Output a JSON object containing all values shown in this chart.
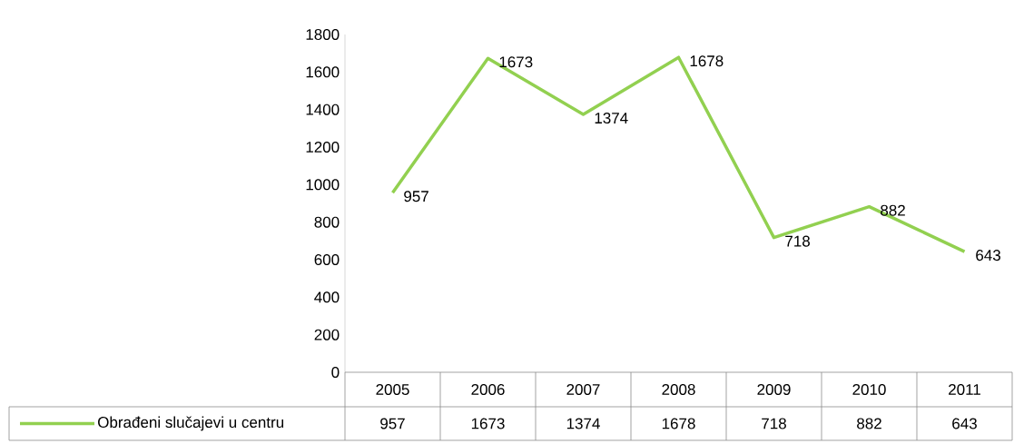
{
  "chart_data": {
    "type": "line",
    "categories": [
      "2005",
      "2006",
      "2007",
      "2008",
      "2009",
      "2010",
      "2011"
    ],
    "series": [
      {
        "name": "Obrađeni slučajevi u centru",
        "color": "#92d050",
        "values": [
          957,
          1673,
          1374,
          1678,
          718,
          882,
          643
        ],
        "value_labels": [
          "957",
          "1673",
          "1374",
          "1678",
          "718",
          "882",
          "643"
        ]
      }
    ],
    "ylim": [
      0,
      1800
    ],
    "yticks": [
      0,
      200,
      400,
      600,
      800,
      1000,
      1200,
      1400,
      1600,
      1800
    ],
    "annotations": [
      "957",
      "1673",
      "1374",
      "1678",
      "718",
      "882",
      "643"
    ],
    "data_labels": true,
    "legend": "bottom",
    "grid": false
  }
}
